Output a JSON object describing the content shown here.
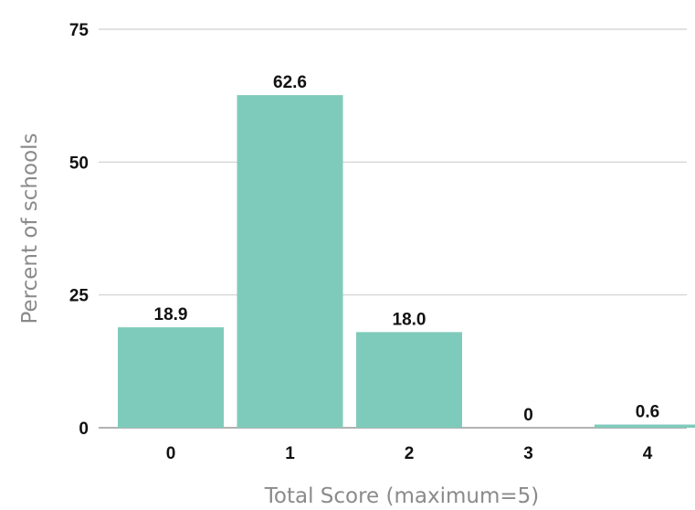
{
  "chart_data": {
    "type": "bar",
    "categories": [
      "0",
      "1",
      "2",
      "3",
      "4"
    ],
    "values": [
      18.9,
      62.6,
      18.0,
      0,
      0.6
    ],
    "value_labels": [
      "18.9",
      "62.6",
      "18.0",
      "0",
      "0.6"
    ],
    "title": "",
    "xlabel": "Total Score (maximum=5)",
    "ylabel": "Percent of schools",
    "ylim": [
      0,
      75
    ],
    "yticks": [
      0,
      25,
      50,
      75
    ],
    "grid": true,
    "legend": "none",
    "colors": {
      "bar": "#7fcbbb",
      "grid": "#cfcfcf",
      "axis": "#9a9a9a"
    }
  }
}
